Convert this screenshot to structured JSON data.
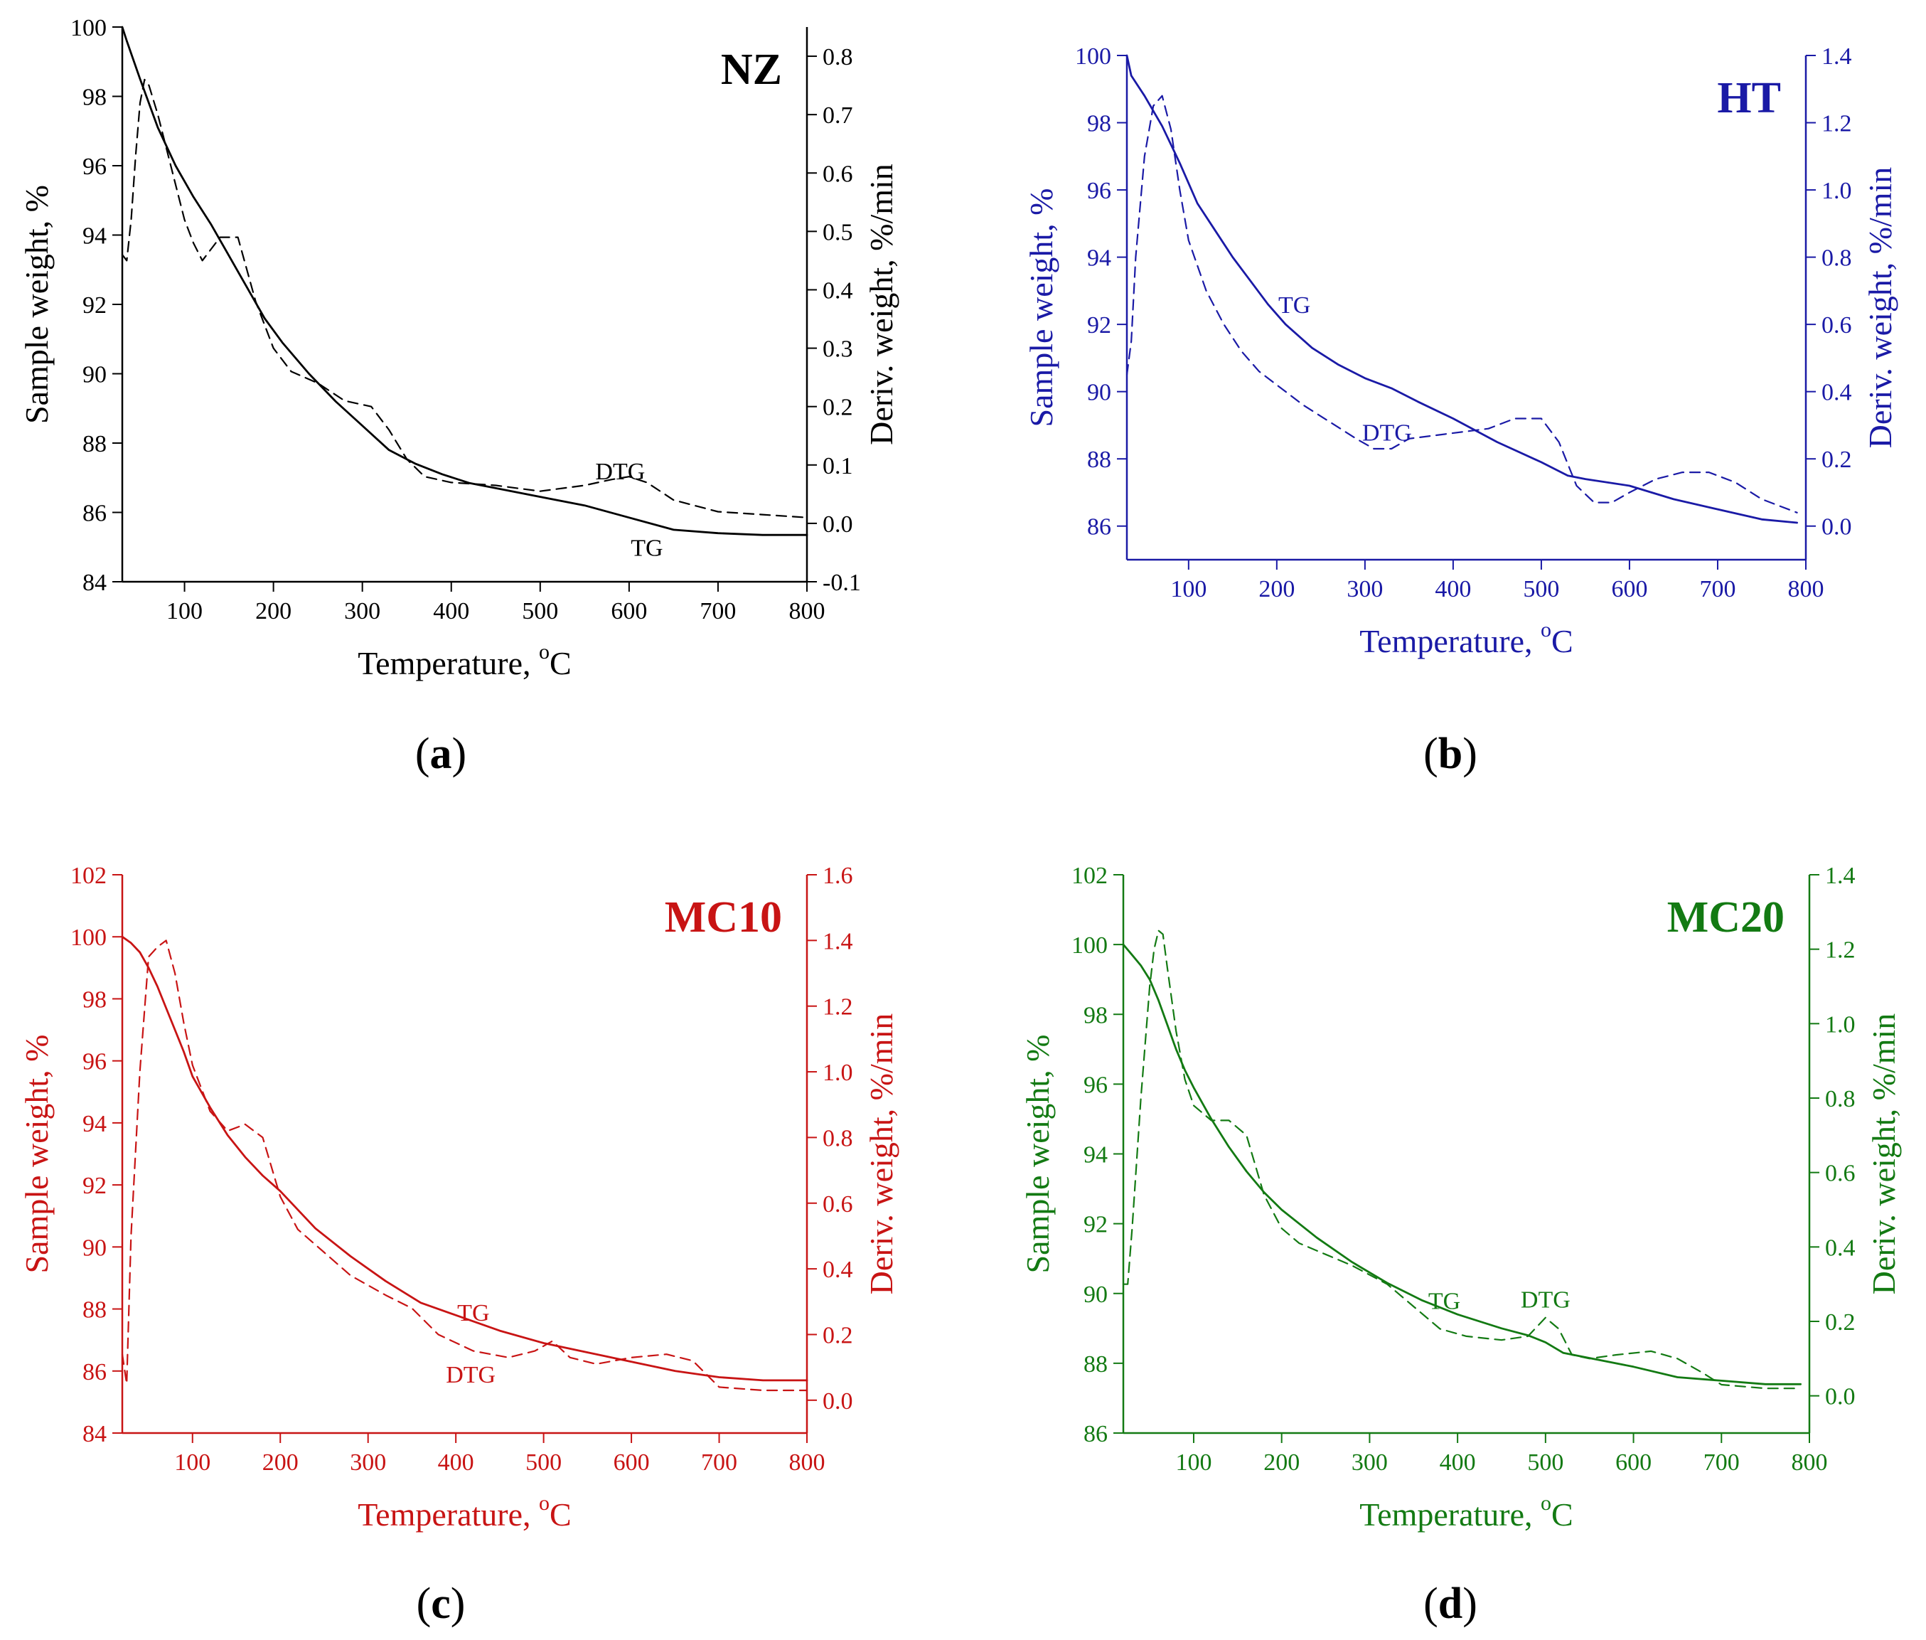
{
  "chart_data": [
    {
      "id": "a",
      "type": "line",
      "color": "#000000",
      "title": "NZ",
      "panel_label": {
        "open": "(",
        "letter": "a",
        "close": ")"
      },
      "xlabel": {
        "main": "Temperature, ",
        "sup": "o",
        "unit": "C"
      },
      "ylabel": "Sample weight, %",
      "y2label": "Deriv. weight, %/min",
      "xlim": [
        30,
        800
      ],
      "ylim": [
        84,
        100
      ],
      "y2lim": [
        -0.1,
        0.85
      ],
      "xticks": [
        100,
        200,
        300,
        400,
        500,
        600,
        700,
        800
      ],
      "yticks": [
        84,
        86,
        88,
        90,
        92,
        94,
        96,
        98,
        100
      ],
      "y2ticks": [
        -0.1,
        0.0,
        0.1,
        0.2,
        0.3,
        0.4,
        0.5,
        0.6,
        0.7,
        0.8
      ],
      "y2tick_labels": [
        "-0.1",
        "0.0",
        "0.1",
        "0.2",
        "0.3",
        "0.4",
        "0.5",
        "0.6",
        "0.7",
        "0.8"
      ],
      "series": [
        {
          "name": "TG",
          "axis": "left",
          "style": "solid",
          "x": [
            30,
            35,
            50,
            70,
            90,
            110,
            130,
            150,
            170,
            190,
            210,
            240,
            270,
            300,
            330,
            360,
            390,
            420,
            450,
            500,
            550,
            600,
            650,
            700,
            750,
            800
          ],
          "y": [
            100.0,
            99.6,
            98.5,
            97.1,
            96.0,
            95.1,
            94.3,
            93.4,
            92.5,
            91.6,
            90.9,
            90.0,
            89.2,
            88.5,
            87.8,
            87.4,
            87.1,
            86.85,
            86.7,
            86.45,
            86.2,
            85.85,
            85.5,
            85.4,
            85.35,
            85.35
          ]
        },
        {
          "name": "DTG",
          "axis": "right",
          "style": "dashed",
          "x": [
            30,
            35,
            40,
            45,
            50,
            55,
            60,
            70,
            80,
            90,
            100,
            110,
            120,
            130,
            140,
            160,
            180,
            200,
            220,
            250,
            280,
            310,
            330,
            350,
            370,
            400,
            450,
            500,
            550,
            580,
            600,
            620,
            650,
            700,
            750,
            800
          ],
          "y": [
            0.46,
            0.45,
            0.52,
            0.63,
            0.72,
            0.76,
            0.75,
            0.7,
            0.64,
            0.58,
            0.52,
            0.48,
            0.45,
            0.47,
            0.49,
            0.49,
            0.38,
            0.3,
            0.26,
            0.24,
            0.21,
            0.2,
            0.16,
            0.11,
            0.08,
            0.07,
            0.065,
            0.055,
            0.065,
            0.075,
            0.08,
            0.07,
            0.04,
            0.02,
            0.015,
            0.01
          ]
        }
      ],
      "annotations": [
        {
          "text": "DTG",
          "x": 590,
          "y": 0.09,
          "axis": "right"
        },
        {
          "text": "TG",
          "x": 620,
          "y": 85.0,
          "axis": "left"
        }
      ]
    },
    {
      "id": "b",
      "type": "line",
      "color": "#1a1aa6",
      "title": "HT",
      "panel_label": {
        "open": "(",
        "letter": "b",
        "close": ")"
      },
      "xlabel": {
        "main": "Temperature, ",
        "sup": "o",
        "unit": "C"
      },
      "ylabel": "Sample weight, %",
      "y2label": "Deriv. weight, %/min",
      "xlim": [
        30,
        800
      ],
      "ylim": [
        85,
        100
      ],
      "y2lim": [
        -0.1,
        1.4
      ],
      "xticks": [
        100,
        200,
        300,
        400,
        500,
        600,
        700,
        800
      ],
      "yticks": [
        86,
        88,
        90,
        92,
        94,
        96,
        98,
        100
      ],
      "y2ticks": [
        0.0,
        0.2,
        0.4,
        0.6,
        0.8,
        1.0,
        1.2,
        1.4
      ],
      "y2tick_labels": [
        "0.0",
        "0.2",
        "0.4",
        "0.6",
        "0.8",
        "1.0",
        "1.2",
        "1.4"
      ],
      "series": [
        {
          "name": "TG",
          "axis": "left",
          "style": "solid",
          "x": [
            30,
            35,
            50,
            70,
            90,
            110,
            130,
            150,
            170,
            190,
            210,
            240,
            270,
            300,
            330,
            360,
            400,
            450,
            500,
            530,
            550,
            600,
            650,
            700,
            750,
            790
          ],
          "y": [
            100.0,
            99.4,
            98.8,
            97.9,
            96.8,
            95.6,
            94.8,
            94.0,
            93.3,
            92.6,
            92.0,
            91.3,
            90.8,
            90.4,
            90.1,
            89.7,
            89.2,
            88.5,
            87.9,
            87.5,
            87.4,
            87.2,
            86.8,
            86.5,
            86.2,
            86.1
          ]
        },
        {
          "name": "DTG",
          "axis": "right",
          "style": "dashed",
          "x": [
            30,
            35,
            40,
            50,
            60,
            70,
            80,
            90,
            100,
            120,
            140,
            160,
            180,
            200,
            230,
            260,
            290,
            310,
            330,
            350,
            380,
            410,
            440,
            470,
            500,
            520,
            540,
            560,
            580,
            600,
            630,
            660,
            690,
            720,
            750,
            790
          ],
          "y": [
            0.45,
            0.55,
            0.8,
            1.1,
            1.25,
            1.28,
            1.18,
            1.0,
            0.85,
            0.7,
            0.6,
            0.52,
            0.46,
            0.42,
            0.36,
            0.31,
            0.26,
            0.23,
            0.23,
            0.26,
            0.27,
            0.28,
            0.29,
            0.32,
            0.32,
            0.25,
            0.12,
            0.07,
            0.07,
            0.1,
            0.14,
            0.16,
            0.16,
            0.13,
            0.08,
            0.04
          ]
        }
      ],
      "annotations": [
        {
          "text": "TG",
          "x": 220,
          "y": 92.6,
          "axis": "left"
        },
        {
          "text": "DTG",
          "x": 325,
          "y": 0.28,
          "axis": "right"
        }
      ]
    },
    {
      "id": "c",
      "type": "line",
      "color": "#c81414",
      "title": "MC10",
      "panel_label": {
        "open": "(",
        "letter": "c",
        "close": ")"
      },
      "xlabel": {
        "main": "Temperature, ",
        "sup": "o",
        "unit": "C"
      },
      "ylabel": "Sample weight, %",
      "y2label": "Deriv. weight, %/min",
      "xlim": [
        20,
        800
      ],
      "ylim": [
        84,
        102
      ],
      "y2lim": [
        -0.1,
        1.6
      ],
      "xticks": [
        100,
        200,
        300,
        400,
        500,
        600,
        700,
        800
      ],
      "yticks": [
        84,
        86,
        88,
        90,
        92,
        94,
        96,
        98,
        100,
        102
      ],
      "y2ticks": [
        0.0,
        0.2,
        0.4,
        0.6,
        0.8,
        1.0,
        1.2,
        1.4,
        1.6
      ],
      "y2tick_labels": [
        "0.0",
        "0.2",
        "0.4",
        "0.6",
        "0.8",
        "1.0",
        "1.2",
        "1.4",
        "1.6"
      ],
      "series": [
        {
          "name": "TG",
          "axis": "left",
          "style": "solid",
          "x": [
            20,
            30,
            40,
            50,
            60,
            70,
            80,
            90,
            100,
            120,
            140,
            160,
            180,
            200,
            240,
            280,
            320,
            360,
            400,
            450,
            500,
            550,
            600,
            650,
            700,
            750,
            800
          ],
          "y": [
            100.0,
            99.8,
            99.5,
            99.0,
            98.4,
            97.7,
            97.0,
            96.3,
            95.5,
            94.5,
            93.6,
            92.9,
            92.3,
            91.8,
            90.6,
            89.7,
            88.9,
            88.2,
            87.8,
            87.3,
            86.9,
            86.6,
            86.3,
            86.0,
            85.8,
            85.7,
            85.7
          ]
        },
        {
          "name": "DTG",
          "axis": "right",
          "style": "dashed",
          "x": [
            20,
            25,
            30,
            40,
            50,
            60,
            70,
            80,
            90,
            100,
            120,
            140,
            160,
            180,
            200,
            220,
            250,
            280,
            320,
            350,
            380,
            420,
            460,
            490,
            510,
            530,
            560,
            600,
            640,
            670,
            700,
            750,
            800
          ],
          "y": [
            0.14,
            0.05,
            0.5,
            1.0,
            1.35,
            1.38,
            1.4,
            1.3,
            1.15,
            1.02,
            0.88,
            0.82,
            0.84,
            0.8,
            0.62,
            0.52,
            0.45,
            0.38,
            0.32,
            0.28,
            0.2,
            0.15,
            0.13,
            0.15,
            0.18,
            0.13,
            0.11,
            0.13,
            0.14,
            0.12,
            0.04,
            0.03,
            0.03
          ]
        }
      ],
      "annotations": [
        {
          "text": "TG",
          "x": 420,
          "y": 87.9,
          "axis": "left"
        },
        {
          "text": "DTG",
          "x": 417,
          "y": 0.08,
          "axis": "right"
        }
      ]
    },
    {
      "id": "d",
      "type": "line",
      "color": "#137a13",
      "title": "MC20",
      "panel_label": {
        "open": "(",
        "letter": "d",
        "close": ")"
      },
      "xlabel": {
        "main": "Temperature, ",
        "sup": "o",
        "unit": "C"
      },
      "ylabel": "Sample weight, %",
      "y2label": "Deriv. weight, %/min",
      "xlim": [
        20,
        800
      ],
      "ylim": [
        86,
        102
      ],
      "y2lim": [
        -0.1,
        1.4
      ],
      "xticks": [
        100,
        200,
        300,
        400,
        500,
        600,
        700,
        800
      ],
      "yticks": [
        86,
        88,
        90,
        92,
        94,
        96,
        98,
        100,
        102
      ],
      "y2ticks": [
        0.0,
        0.2,
        0.4,
        0.6,
        0.8,
        1.0,
        1.2,
        1.4
      ],
      "y2tick_labels": [
        "0.0",
        "0.2",
        "0.4",
        "0.6",
        "0.8",
        "1.0",
        "1.2",
        "1.4"
      ],
      "series": [
        {
          "name": "TG",
          "axis": "left",
          "style": "solid",
          "x": [
            20,
            30,
            40,
            50,
            60,
            70,
            80,
            90,
            100,
            120,
            140,
            160,
            180,
            200,
            240,
            280,
            320,
            360,
            400,
            450,
            480,
            500,
            520,
            540,
            600,
            650,
            700,
            750,
            790
          ],
          "y": [
            100.0,
            99.7,
            99.4,
            99.0,
            98.4,
            97.7,
            97.0,
            96.4,
            95.9,
            95.0,
            94.2,
            93.5,
            92.9,
            92.4,
            91.6,
            90.9,
            90.3,
            89.8,
            89.4,
            89.0,
            88.8,
            88.6,
            88.3,
            88.2,
            87.9,
            87.6,
            87.5,
            87.4,
            87.4
          ]
        },
        {
          "name": "DTG",
          "axis": "right",
          "style": "dashed",
          "x": [
            20,
            25,
            30,
            40,
            50,
            55,
            60,
            65,
            70,
            80,
            90,
            100,
            120,
            140,
            160,
            180,
            200,
            220,
            250,
            280,
            320,
            350,
            380,
            410,
            450,
            480,
            500,
            515,
            530,
            550,
            580,
            620,
            650,
            680,
            700,
            750,
            790
          ],
          "y": [
            0.3,
            0.3,
            0.45,
            0.8,
            1.1,
            1.2,
            1.25,
            1.24,
            1.15,
            0.98,
            0.85,
            0.78,
            0.74,
            0.74,
            0.7,
            0.54,
            0.45,
            0.41,
            0.38,
            0.35,
            0.3,
            0.24,
            0.18,
            0.16,
            0.15,
            0.16,
            0.21,
            0.18,
            0.11,
            0.1,
            0.11,
            0.12,
            0.1,
            0.06,
            0.03,
            0.02,
            0.02
          ]
        }
      ],
      "annotations": [
        {
          "text": "TG",
          "x": 385,
          "y": 89.8,
          "axis": "left"
        },
        {
          "text": "DTG",
          "x": 500,
          "y": 0.26,
          "axis": "right"
        }
      ]
    }
  ]
}
